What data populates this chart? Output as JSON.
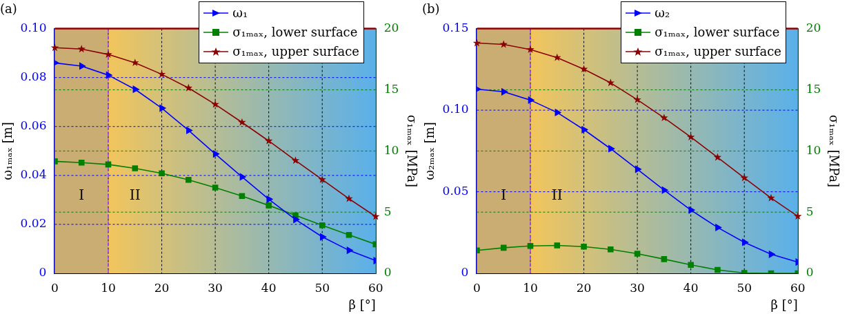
{
  "chart_data": [
    {
      "type": "line",
      "title": "(a)",
      "xlabel": "β [°]",
      "ylabel": "ω₁ₘₐₓ [m]",
      "y2label": "σ₁ₘₐₓ [MPa]",
      "x": [
        0,
        5,
        10,
        15,
        20,
        25,
        30,
        35,
        40,
        45,
        50,
        55,
        60
      ],
      "series": [
        {
          "name": "ω₁",
          "color": "#0000ff",
          "marker": "triangle",
          "values": [
            0.086,
            0.0847,
            0.081,
            0.0752,
            0.0675,
            0.0584,
            0.0488,
            0.0394,
            0.0303,
            0.022,
            0.0149,
            0.0094,
            0.0052
          ]
        },
        {
          "name": "σ₁ₘₐₓ, lower surface",
          "color": "#008000",
          "marker": "square",
          "axis": "y2",
          "values": [
            9.15,
            9.05,
            8.9,
            8.58,
            8.17,
            7.64,
            7.01,
            6.32,
            5.55,
            4.74,
            3.93,
            3.14,
            2.37
          ]
        },
        {
          "name": "σ₁ₘₐₓ, upper surface",
          "color": "#8b0000",
          "marker": "star",
          "axis": "y2",
          "values": [
            18.44,
            18.33,
            17.89,
            17.21,
            16.27,
            15.15,
            13.81,
            12.34,
            10.82,
            9.22,
            7.66,
            6.1,
            4.64
          ]
        }
      ],
      "xlim": [
        0,
        60
      ],
      "xticks": [
        0,
        10,
        20,
        30,
        40,
        50,
        60
      ],
      "ylim": [
        0,
        0.1
      ],
      "yticks": [
        0,
        0.02,
        0.04,
        0.06,
        0.08,
        {
          "value": 0.1,
          "label": "0.10"
        }
      ],
      "y2lim": [
        0,
        20
      ],
      "y2ticks": [
        0,
        5,
        10,
        15,
        20
      ],
      "bands": [
        {
          "axis": "x",
          "from": 0,
          "to": 10,
          "label": "I",
          "color": "#c9ad72"
        },
        {
          "axis": "x",
          "from": 10,
          "to": 60,
          "label": "II",
          "color": "#f2c55c"
        }
      ],
      "ref_lines": [
        {
          "axis": "x",
          "value": 10,
          "color": "#a040ff",
          "line_style": "dashed"
        }
      ],
      "grid": true,
      "legend": "top right",
      "line_style": "solid"
    },
    {
      "type": "line",
      "title": "(b)",
      "xlabel": "β [°]",
      "ylabel": "ω₂ₘₐₓ [m]",
      "y2label": "σ₁ₘₐₓ [MPa]",
      "x": [
        0,
        5,
        10,
        15,
        20,
        25,
        30,
        35,
        40,
        45,
        50,
        55,
        60
      ],
      "series": [
        {
          "name": "ω₂",
          "color": "#0000ff",
          "marker": "triangle",
          "values": [
            0.1129,
            0.1113,
            0.1062,
            0.0986,
            0.0881,
            0.0764,
            0.0638,
            0.051,
            0.0388,
            0.0281,
            0.019,
            0.0117,
            0.0069
          ]
        },
        {
          "name": "σ₁ₘₐₓ, lower surface",
          "color": "#008000",
          "marker": "square",
          "axis": "y2",
          "values": [
            1.87,
            2.09,
            2.24,
            2.28,
            2.18,
            1.96,
            1.6,
            1.16,
            0.69,
            0.28,
            0.03,
            0,
            0
          ]
        },
        {
          "name": "σ₁ₘₐₓ, upper surface",
          "color": "#8b0000",
          "marker": "star",
          "axis": "y2",
          "values": [
            18.82,
            18.71,
            18.29,
            17.63,
            16.69,
            15.57,
            14.19,
            12.71,
            11.13,
            9.48,
            7.8,
            6.15,
            4.66
          ]
        }
      ],
      "xlim": [
        0,
        60
      ],
      "xticks": [
        0,
        10,
        20,
        30,
        40,
        50,
        60
      ],
      "ylim": [
        0,
        0.15
      ],
      "yticks": [
        0,
        {
          "value": 0.05,
          "label": "0.05"
        },
        {
          "value": 0.1,
          "label": "0.10"
        },
        {
          "value": 0.15,
          "label": "0.15"
        }
      ],
      "y2lim": [
        0,
        20
      ],
      "y2ticks": [
        0,
        5,
        10,
        15,
        20
      ],
      "bands": [
        {
          "axis": "x",
          "from": 0,
          "to": 10,
          "label": "I",
          "color": "#c9ad72"
        },
        {
          "axis": "x",
          "from": 10,
          "to": 60,
          "label": "II",
          "color": "#f2c55c"
        }
      ],
      "ref_lines": [
        {
          "axis": "x",
          "value": 10,
          "color": "#a040ff",
          "line_style": "dashed"
        }
      ],
      "grid": true,
      "legend": "top right",
      "line_style": "solid"
    }
  ]
}
